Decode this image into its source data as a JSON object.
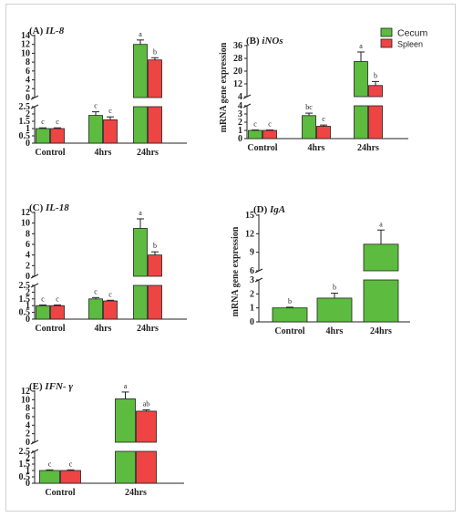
{
  "legend": {
    "items": [
      {
        "label": "Cecum",
        "color": "#5dbb3f"
      },
      {
        "label": "Spleen",
        "color": "#ee4444"
      }
    ]
  },
  "chart_data": [
    {
      "id": "A",
      "type": "bar",
      "panel_label": "(A)",
      "title": "IL-8",
      "ylabel": "",
      "categories": [
        "Control",
        "4hrs",
        "24hrs"
      ],
      "series": [
        {
          "name": "Cecum",
          "values": [
            1.0,
            1.9,
            12.0
          ],
          "errors": [
            0.05,
            0.25,
            1.0
          ],
          "letters": [
            "c",
            "c",
            "a"
          ]
        },
        {
          "name": "Spleen",
          "values": [
            1.0,
            1.6,
            8.5
          ],
          "errors": [
            0.05,
            0.2,
            0.5
          ],
          "letters": [
            "c",
            "c",
            "b"
          ]
        }
      ],
      "lower_ticks": [
        "0",
        "0.5",
        "1",
        "1.5",
        "2",
        "2.5"
      ],
      "upper_ticks": [
        "0",
        "2",
        "4",
        "6",
        "8",
        "10",
        "12",
        "14"
      ],
      "break": true
    },
    {
      "id": "B",
      "type": "bar",
      "panel_label": "(B)",
      "title": "iNOs",
      "ylabel": "mRNA gene expression",
      "categories": [
        "Control",
        "4hrs",
        "24hrs"
      ],
      "series": [
        {
          "name": "Cecum",
          "values": [
            1.0,
            2.8,
            26.0
          ],
          "errors": [
            0.05,
            0.3,
            6.0
          ],
          "letters": [
            "c",
            "bc",
            "a"
          ]
        },
        {
          "name": "Spleen",
          "values": [
            1.0,
            1.5,
            11.0
          ],
          "errors": [
            0.05,
            0.15,
            2.5
          ],
          "letters": [
            "c",
            "c",
            "b"
          ]
        }
      ],
      "lower_ticks": [
        "0",
        "1",
        "2",
        "3",
        "4"
      ],
      "upper_ticks": [
        "4",
        "12",
        "20",
        "28",
        "36"
      ],
      "break": true
    },
    {
      "id": "C",
      "type": "bar",
      "panel_label": "(C)",
      "title": "IL-18",
      "ylabel": "",
      "categories": [
        "Control",
        "4hrs",
        "24hrs"
      ],
      "series": [
        {
          "name": "Cecum",
          "values": [
            1.0,
            1.5,
            9.0
          ],
          "errors": [
            0.05,
            0.1,
            1.8
          ],
          "letters": [
            "c",
            "c",
            "a"
          ]
        },
        {
          "name": "Spleen",
          "values": [
            1.0,
            1.35,
            4.0
          ],
          "errors": [
            0.05,
            0.05,
            0.6
          ],
          "letters": [
            "c",
            "c",
            "b"
          ]
        }
      ],
      "lower_ticks": [
        "0",
        "0.5",
        "1",
        "1.5",
        "2",
        "2.5"
      ],
      "upper_ticks": [
        "0",
        "2",
        "4",
        "6",
        "8",
        "10",
        "12"
      ],
      "break": true
    },
    {
      "id": "D",
      "type": "bar",
      "panel_label": "(D)",
      "title": "IgA",
      "ylabel": "mRNA gene expression",
      "categories": [
        "Control",
        "4hrs",
        "24hrs"
      ],
      "series": [
        {
          "name": "Cecum",
          "values": [
            1.0,
            1.7,
            10.3
          ],
          "errors": [
            0.05,
            0.35,
            2.3
          ],
          "letters": [
            "b",
            "b",
            "a"
          ]
        }
      ],
      "lower_ticks": [
        "0",
        "1",
        "2",
        "3"
      ],
      "upper_ticks": [
        "6",
        "9",
        "12",
        "15"
      ],
      "break": true
    },
    {
      "id": "E",
      "type": "bar",
      "panel_label": "(E)",
      "title": "IFN- γ",
      "ylabel": "",
      "categories": [
        "Control",
        "24hrs"
      ],
      "series": [
        {
          "name": "Cecum",
          "values": [
            1.0,
            10.2
          ],
          "errors": [
            0.05,
            1.6
          ],
          "letters": [
            "c",
            "a"
          ]
        },
        {
          "name": "Spleen",
          "values": [
            1.0,
            7.3
          ],
          "errors": [
            0.05,
            0.3
          ],
          "letters": [
            "c",
            "ab"
          ]
        }
      ],
      "lower_ticks": [
        "0",
        "0.5",
        "1",
        "1.5",
        "2",
        "2.5"
      ],
      "upper_ticks": [
        "0",
        "2",
        "4",
        "6",
        "8",
        "10",
        "12"
      ],
      "break": true
    }
  ]
}
